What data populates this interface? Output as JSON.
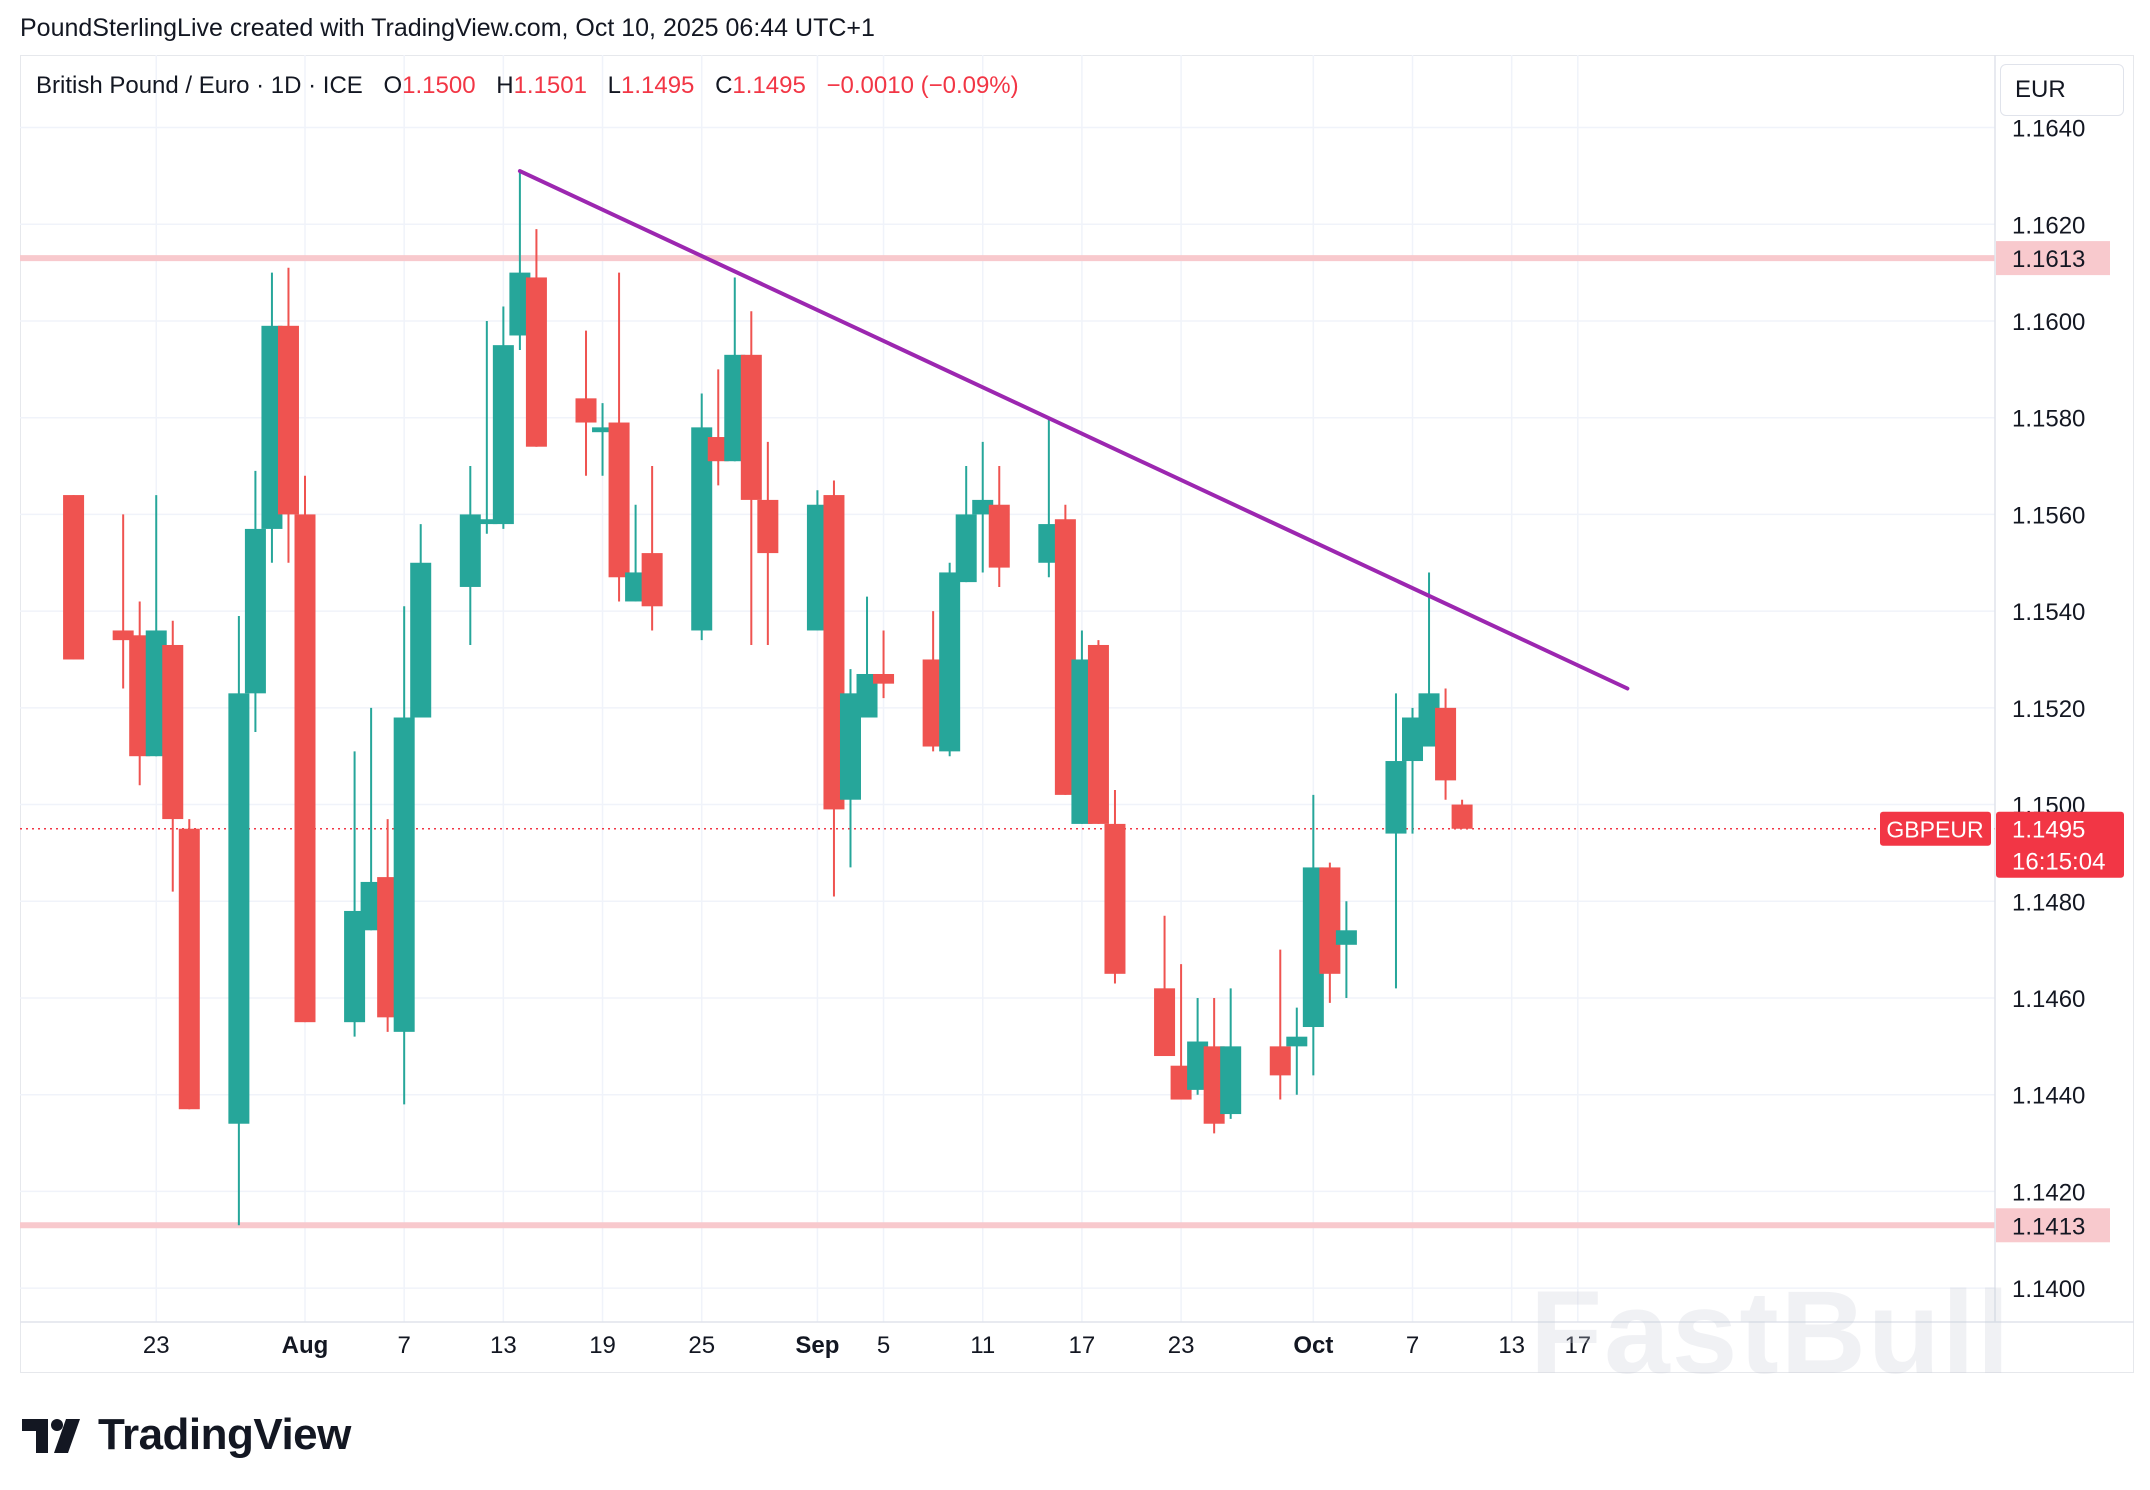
{
  "header": {
    "caption": "PoundSterlingLive created with TradingView.com, Oct 10, 2025 06:44 UTC+1"
  },
  "legend": {
    "symbol": "British Pound / Euro · 1D · ICE",
    "open_label": "O",
    "open": "1.1500",
    "high_label": "H",
    "high": "1.1501",
    "low_label": "L",
    "low": "1.1495",
    "close_label": "C",
    "close": "1.1495",
    "change": "−0.0010 (−0.09%)"
  },
  "currency_button": "EUR",
  "brand": {
    "name": "TradingView",
    "icon": "tradingview-logo-icon"
  },
  "watermark": "FastBull",
  "colors": {
    "up": "#26a69a",
    "down": "#ef5350",
    "trendline": "#9c27b0",
    "level": "#f8c9cd",
    "price_tag": "#f23645"
  },
  "chart_data": {
    "type": "candlestick",
    "symbol": "GBPEUR",
    "ylim": [
      1.1393,
      1.1655
    ],
    "y_ticks": [
      "1.1640",
      "1.1620",
      "1.1600",
      "1.1580",
      "1.1560",
      "1.1540",
      "1.1520",
      "1.1500",
      "1.1480",
      "1.1460",
      "1.1440",
      "1.1420",
      "1.1400"
    ],
    "x_ticks": [
      {
        "label": "23",
        "date": "2025-07-23"
      },
      {
        "label": "Aug",
        "date": "2025-08-01"
      },
      {
        "label": "7",
        "date": "2025-08-07"
      },
      {
        "label": "13",
        "date": "2025-08-13"
      },
      {
        "label": "19",
        "date": "2025-08-19"
      },
      {
        "label": "25",
        "date": "2025-08-25"
      },
      {
        "label": "Sep",
        "date": "2025-09-01"
      },
      {
        "label": "5",
        "date": "2025-09-05"
      },
      {
        "label": "11",
        "date": "2025-09-11"
      },
      {
        "label": "17",
        "date": "2025-09-17"
      },
      {
        "label": "23",
        "date": "2025-09-23"
      },
      {
        "label": "Oct",
        "date": "2025-10-01"
      },
      {
        "label": "7",
        "date": "2025-10-07"
      },
      {
        "label": "13",
        "date": "2025-10-13"
      },
      {
        "label": "17",
        "date": "2025-10-17"
      }
    ],
    "candles": [
      {
        "date": "2025-07-18",
        "o": 1.1564,
        "h": 1.1564,
        "l": 1.153,
        "c": 1.153
      },
      {
        "date": "2025-07-21",
        "o": 1.1536,
        "h": 1.156,
        "l": 1.1524,
        "c": 1.1534
      },
      {
        "date": "2025-07-22",
        "o": 1.1535,
        "h": 1.1542,
        "l": 1.1504,
        "c": 1.151
      },
      {
        "date": "2025-07-23",
        "o": 1.151,
        "h": 1.1564,
        "l": 1.151,
        "c": 1.1536
      },
      {
        "date": "2025-07-24",
        "o": 1.1533,
        "h": 1.1538,
        "l": 1.1482,
        "c": 1.1497
      },
      {
        "date": "2025-07-25",
        "o": 1.1495,
        "h": 1.1497,
        "l": 1.1437,
        "c": 1.1437
      },
      {
        "date": "2025-07-28",
        "o": 1.1434,
        "h": 1.1539,
        "l": 1.1413,
        "c": 1.1523
      },
      {
        "date": "2025-07-29",
        "o": 1.1523,
        "h": 1.1569,
        "l": 1.1515,
        "c": 1.1557
      },
      {
        "date": "2025-07-30",
        "o": 1.1557,
        "h": 1.161,
        "l": 1.155,
        "c": 1.1599
      },
      {
        "date": "2025-07-31",
        "o": 1.1599,
        "h": 1.1611,
        "l": 1.155,
        "c": 1.156
      },
      {
        "date": "2025-08-01",
        "o": 1.156,
        "h": 1.1568,
        "l": 1.1455,
        "c": 1.1455
      },
      {
        "date": "2025-08-04",
        "o": 1.1455,
        "h": 1.1511,
        "l": 1.1452,
        "c": 1.1478
      },
      {
        "date": "2025-08-05",
        "o": 1.1474,
        "h": 1.152,
        "l": 1.1474,
        "c": 1.1484
      },
      {
        "date": "2025-08-06",
        "o": 1.1485,
        "h": 1.1497,
        "l": 1.1453,
        "c": 1.1456
      },
      {
        "date": "2025-08-07",
        "o": 1.1453,
        "h": 1.1541,
        "l": 1.1438,
        "c": 1.1518
      },
      {
        "date": "2025-08-08",
        "o": 1.1518,
        "h": 1.1558,
        "l": 1.1518,
        "c": 1.155
      },
      {
        "date": "2025-08-11",
        "o": 1.1545,
        "h": 1.157,
        "l": 1.1533,
        "c": 1.156
      },
      {
        "date": "2025-08-12",
        "o": 1.1558,
        "h": 1.16,
        "l": 1.1556,
        "c": 1.1559
      },
      {
        "date": "2025-08-13",
        "o": 1.1558,
        "h": 1.1603,
        "l": 1.1557,
        "c": 1.1595
      },
      {
        "date": "2025-08-14",
        "o": 1.1597,
        "h": 1.1631,
        "l": 1.1594,
        "c": 1.161
      },
      {
        "date": "2025-08-15",
        "o": 1.1609,
        "h": 1.1619,
        "l": 1.1574,
        "c": 1.1574
      },
      {
        "date": "2025-08-18",
        "o": 1.1584,
        "h": 1.1598,
        "l": 1.1568,
        "c": 1.1579
      },
      {
        "date": "2025-08-19",
        "o": 1.1577,
        "h": 1.1583,
        "l": 1.1568,
        "c": 1.1578
      },
      {
        "date": "2025-08-20",
        "o": 1.1579,
        "h": 1.161,
        "l": 1.1542,
        "c": 1.1547
      },
      {
        "date": "2025-08-21",
        "o": 1.1542,
        "h": 1.1562,
        "l": 1.1542,
        "c": 1.1548
      },
      {
        "date": "2025-08-22",
        "o": 1.1552,
        "h": 1.157,
        "l": 1.1536,
        "c": 1.1541
      },
      {
        "date": "2025-08-25",
        "o": 1.1536,
        "h": 1.1585,
        "l": 1.1534,
        "c": 1.1578
      },
      {
        "date": "2025-08-26",
        "o": 1.1576,
        "h": 1.159,
        "l": 1.1566,
        "c": 1.1571
      },
      {
        "date": "2025-08-27",
        "o": 1.1571,
        "h": 1.1609,
        "l": 1.1571,
        "c": 1.1593
      },
      {
        "date": "2025-08-28",
        "o": 1.1593,
        "h": 1.1602,
        "l": 1.1533,
        "c": 1.1563
      },
      {
        "date": "2025-08-29",
        "o": 1.1563,
        "h": 1.1575,
        "l": 1.1533,
        "c": 1.1552
      },
      {
        "date": "2025-09-01",
        "o": 1.1536,
        "h": 1.1565,
        "l": 1.1536,
        "c": 1.1562
      },
      {
        "date": "2025-09-02",
        "o": 1.1564,
        "h": 1.1567,
        "l": 1.1481,
        "c": 1.1499
      },
      {
        "date": "2025-09-03",
        "o": 1.1501,
        "h": 1.1528,
        "l": 1.1487,
        "c": 1.1523
      },
      {
        "date": "2025-09-04",
        "o": 1.1518,
        "h": 1.1543,
        "l": 1.1518,
        "c": 1.1527
      },
      {
        "date": "2025-09-05",
        "o": 1.1527,
        "h": 1.1536,
        "l": 1.1522,
        "c": 1.1525
      },
      {
        "date": "2025-09-08",
        "o": 1.153,
        "h": 1.154,
        "l": 1.1511,
        "c": 1.1512
      },
      {
        "date": "2025-09-09",
        "o": 1.1511,
        "h": 1.155,
        "l": 1.151,
        "c": 1.1548
      },
      {
        "date": "2025-09-10",
        "o": 1.1546,
        "h": 1.157,
        "l": 1.1546,
        "c": 1.156
      },
      {
        "date": "2025-09-11",
        "o": 1.156,
        "h": 1.1575,
        "l": 1.1548,
        "c": 1.1563
      },
      {
        "date": "2025-09-12",
        "o": 1.1562,
        "h": 1.157,
        "l": 1.1545,
        "c": 1.1549
      },
      {
        "date": "2025-09-15",
        "o": 1.155,
        "h": 1.158,
        "l": 1.1547,
        "c": 1.1558
      },
      {
        "date": "2025-09-16",
        "o": 1.1559,
        "h": 1.1562,
        "l": 1.1502,
        "c": 1.1502
      },
      {
        "date": "2025-09-17",
        "o": 1.1496,
        "h": 1.1536,
        "l": 1.1496,
        "c": 1.153
      },
      {
        "date": "2025-09-18",
        "o": 1.1533,
        "h": 1.1534,
        "l": 1.1496,
        "c": 1.1496
      },
      {
        "date": "2025-09-19",
        "o": 1.1496,
        "h": 1.1503,
        "l": 1.1463,
        "c": 1.1465
      },
      {
        "date": "2025-09-22",
        "o": 1.1462,
        "h": 1.1477,
        "l": 1.1448,
        "c": 1.1448
      },
      {
        "date": "2025-09-23",
        "o": 1.1446,
        "h": 1.1467,
        "l": 1.1439,
        "c": 1.1439
      },
      {
        "date": "2025-09-24",
        "o": 1.1441,
        "h": 1.146,
        "l": 1.144,
        "c": 1.1451
      },
      {
        "date": "2025-09-25",
        "o": 1.145,
        "h": 1.146,
        "l": 1.1432,
        "c": 1.1434
      },
      {
        "date": "2025-09-26",
        "o": 1.1436,
        "h": 1.1462,
        "l": 1.1435,
        "c": 1.145
      },
      {
        "date": "2025-09-29",
        "o": 1.145,
        "h": 1.147,
        "l": 1.1439,
        "c": 1.1444
      },
      {
        "date": "2025-09-30",
        "o": 1.145,
        "h": 1.1458,
        "l": 1.144,
        "c": 1.1452
      },
      {
        "date": "2025-10-01",
        "o": 1.1454,
        "h": 1.1502,
        "l": 1.1444,
        "c": 1.1487
      },
      {
        "date": "2025-10-02",
        "o": 1.1487,
        "h": 1.1488,
        "l": 1.1459,
        "c": 1.1465
      },
      {
        "date": "2025-10-03",
        "o": 1.1471,
        "h": 1.148,
        "l": 1.146,
        "c": 1.1474
      },
      {
        "date": "2025-10-06",
        "o": 1.1494,
        "h": 1.1523,
        "l": 1.1462,
        "c": 1.1509
      },
      {
        "date": "2025-10-07",
        "o": 1.1509,
        "h": 1.152,
        "l": 1.1494,
        "c": 1.1518
      },
      {
        "date": "2025-10-08",
        "o": 1.1512,
        "h": 1.1548,
        "l": 1.1512,
        "c": 1.1523
      },
      {
        "date": "2025-10-09",
        "o": 1.152,
        "h": 1.1524,
        "l": 1.1501,
        "c": 1.1505
      },
      {
        "date": "2025-10-10",
        "o": 1.15,
        "h": 1.1501,
        "l": 1.1495,
        "c": 1.1495
      }
    ],
    "horizontal_levels": [
      {
        "value": 1.1613,
        "label": "1.1613"
      },
      {
        "value": 1.1413,
        "label": "1.1413"
      }
    ],
    "trendline": {
      "start": {
        "date": "2025-08-14",
        "price": 1.1631
      },
      "end": {
        "date": "2025-10-20",
        "price": 1.1524
      }
    },
    "last_price": {
      "symbol_tag": "GBPEUR",
      "price": "1.1495",
      "countdown": "16:15:04",
      "value": 1.1495
    },
    "grid": true
  }
}
